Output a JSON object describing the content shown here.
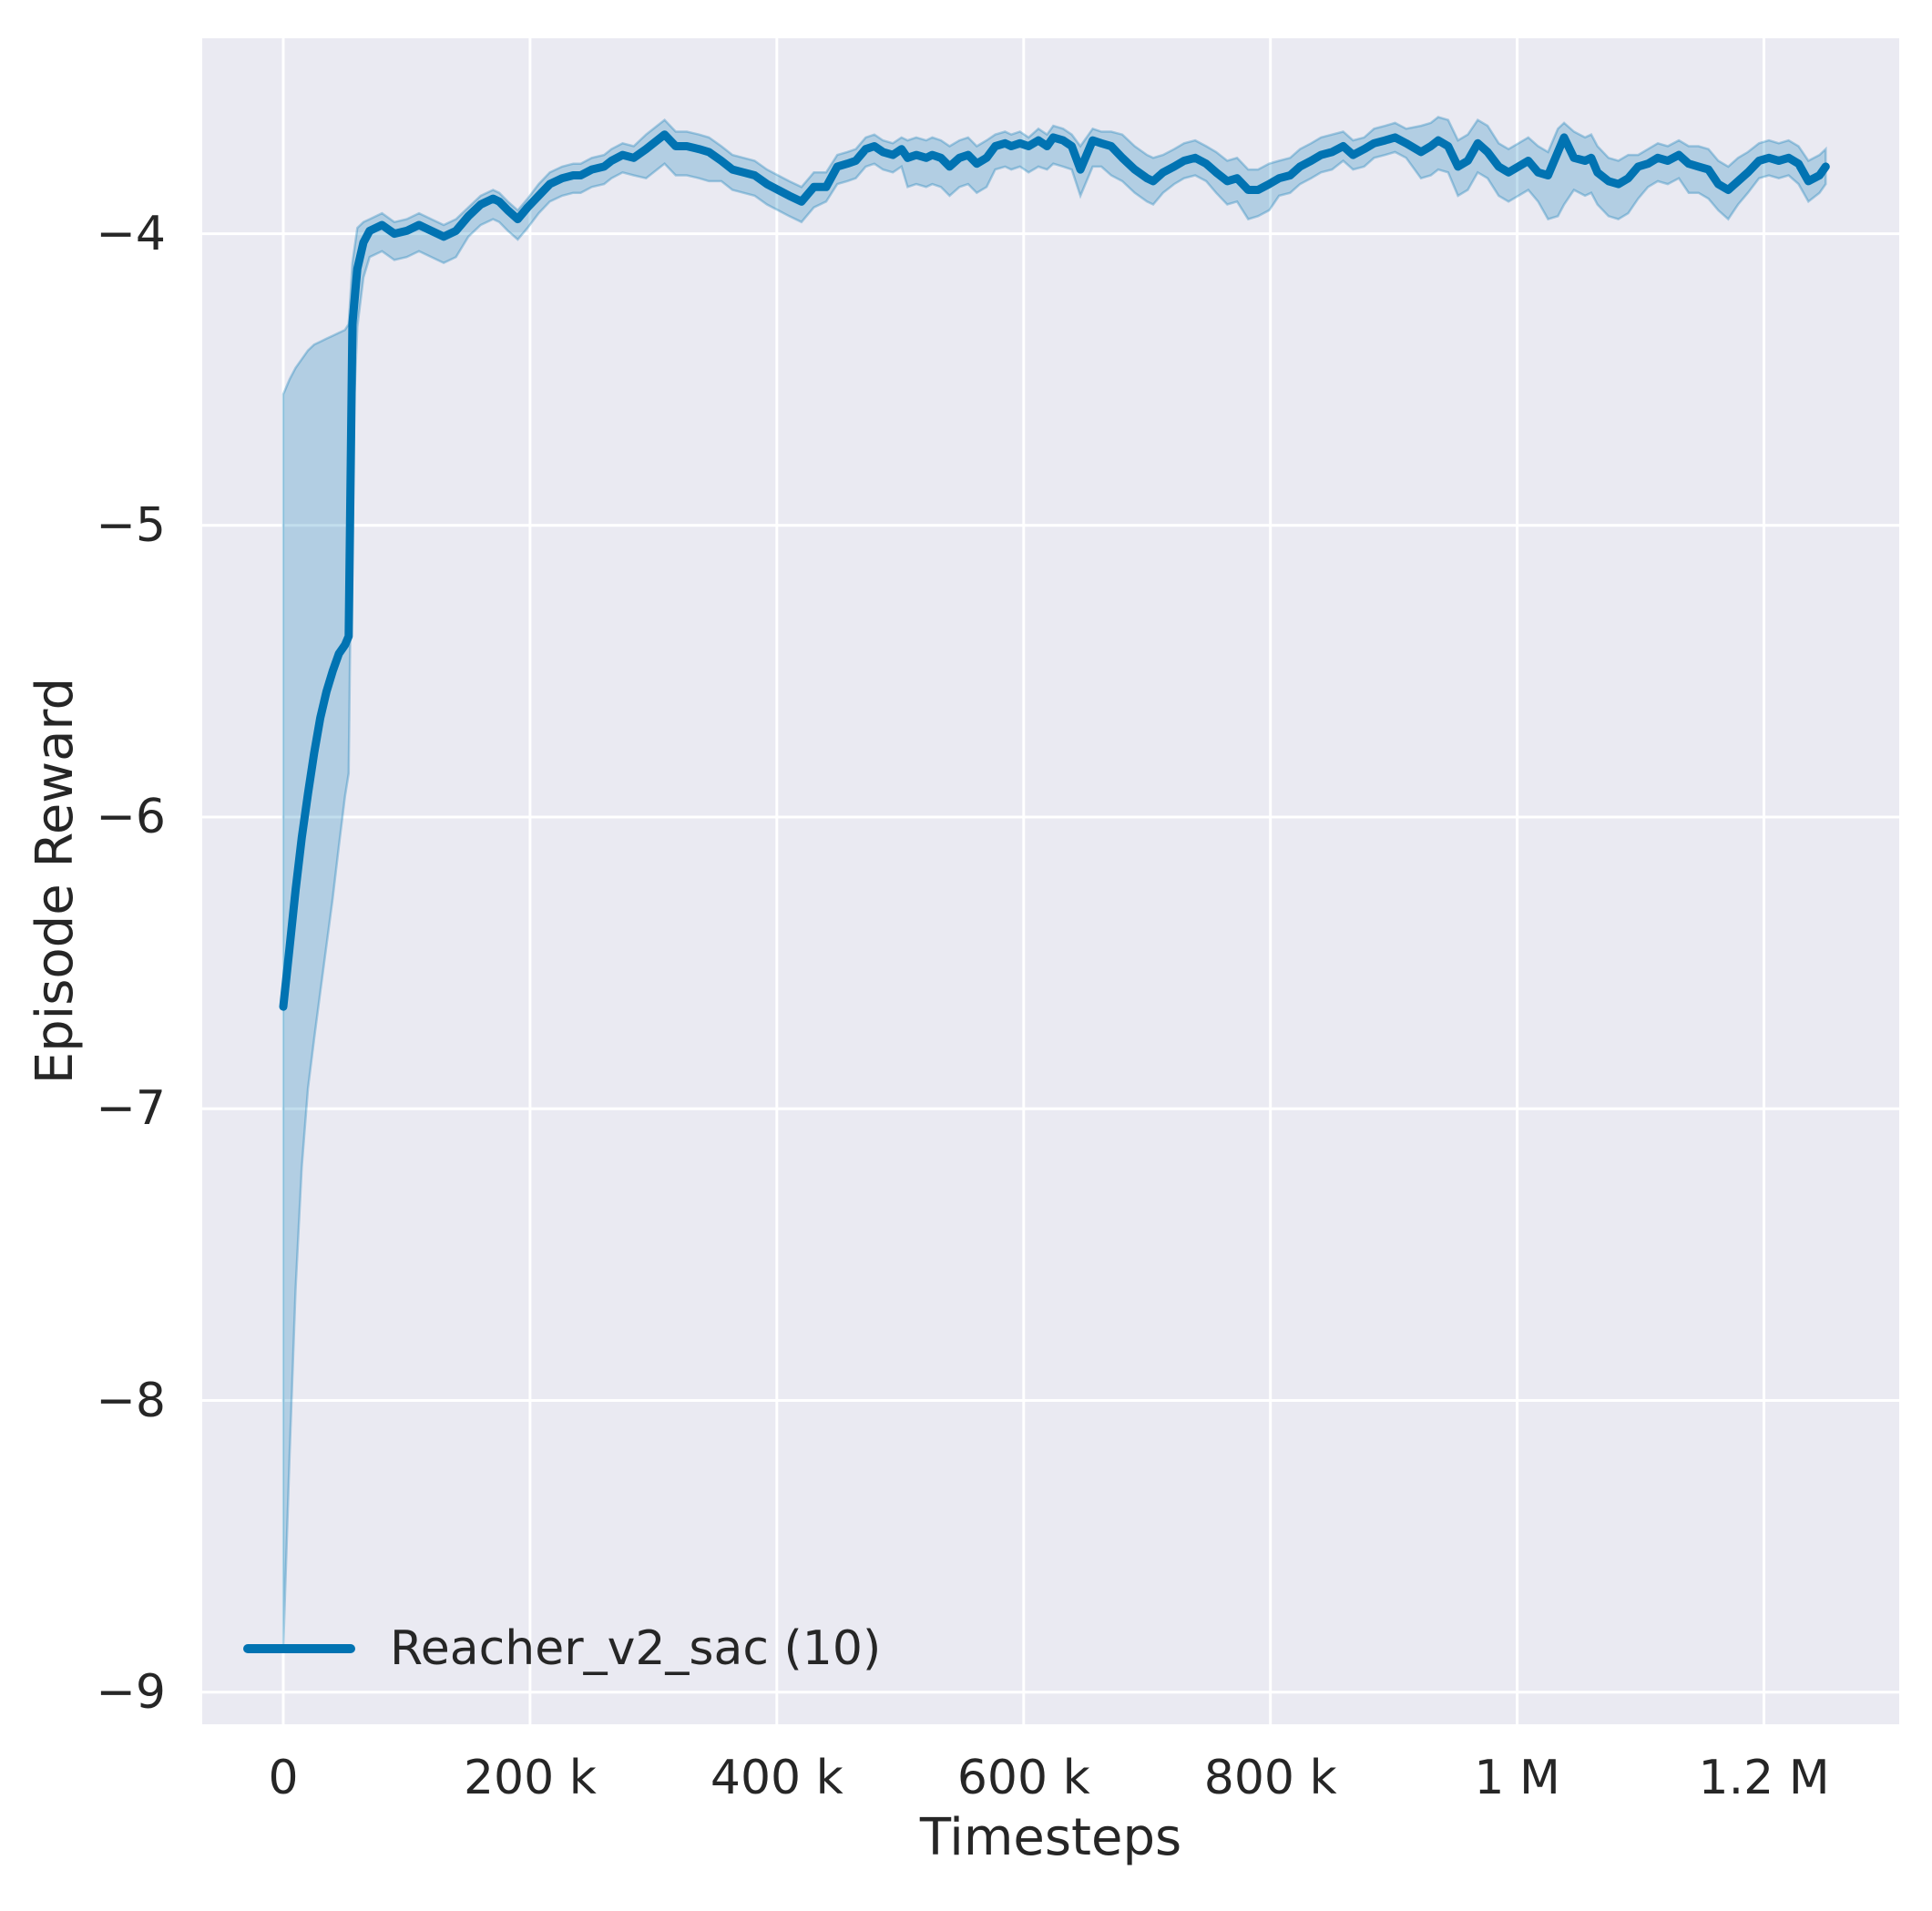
{
  "figure": {
    "background": "#ffffff",
    "plot_background": "#eaeaf2",
    "grid_color": "#ffffff",
    "text_color": "#262626"
  },
  "legend": {
    "entries": [
      {
        "label": "Reacher_v2_sac (10)",
        "color": "#0173b2"
      }
    ],
    "position": "lower left"
  },
  "chart_data": {
    "type": "line",
    "title": "",
    "xlabel": "Timesteps",
    "ylabel": "Episode Reward",
    "grid": true,
    "legend_position": "lower left",
    "x_unit": "timesteps (x_k values are thousands of timesteps)",
    "xlim_k": [
      -65.7,
      1309.6
    ],
    "ylim": [
      -9.11,
      -3.33
    ],
    "xticks": [
      {
        "value_k": 0,
        "label": "0"
      },
      {
        "value_k": 200,
        "label": "200 k"
      },
      {
        "value_k": 400,
        "label": "400 k"
      },
      {
        "value_k": 600,
        "label": "600 k"
      },
      {
        "value_k": 800,
        "label": "800 k"
      },
      {
        "value_k": 1000,
        "label": "1 M"
      },
      {
        "value_k": 1200,
        "label": "1.2 M"
      }
    ],
    "yticks": [
      {
        "value": -4,
        "label": "−4"
      },
      {
        "value": -5,
        "label": "−5"
      },
      {
        "value": -6,
        "label": "−6"
      },
      {
        "value": -7,
        "label": "−7"
      },
      {
        "value": -8,
        "label": "−8"
      },
      {
        "value": -9,
        "label": "−9"
      }
    ],
    "series": [
      {
        "name": "Reacher_v2_sac (10)",
        "color": "#0173b2",
        "band_fill_opacity": 0.24,
        "x_k": [
          0,
          5,
          10,
          15,
          20,
          25,
          30,
          35,
          40,
          45,
          50,
          53,
          56,
          60,
          65,
          70,
          80,
          90,
          100,
          110,
          120,
          130,
          140,
          150,
          160,
          170,
          175,
          182,
          190,
          198,
          207,
          216,
          226,
          235,
          241,
          250,
          260,
          266,
          275,
          284,
          294,
          303,
          309,
          318,
          327,
          337,
          345,
          355,
          364,
          373,
          382,
          392,
          401,
          410,
          420,
          430,
          440,
          449,
          457,
          464,
          472,
          479,
          486,
          494,
          501,
          506,
          513,
          521,
          526,
          533,
          540,
          548,
          555,
          562,
          570,
          577,
          585,
          590,
          597,
          604,
          612,
          619,
          624,
          632,
          639,
          646,
          656,
          663,
          671,
          680,
          690,
          700,
          705,
          713,
          722,
          730,
          739,
          748,
          756,
          765,
          773,
          782,
          790,
          799,
          807,
          816,
          824,
          833,
          841,
          850,
          859,
          867,
          876,
          884,
          893,
          901,
          910,
          922,
          930,
          936,
          944,
          952,
          960,
          968,
          976,
          985,
          993,
          1001,
          1009,
          1017,
          1025,
          1033,
          1038,
          1046,
          1055,
          1060,
          1065,
          1074,
          1082,
          1090,
          1098,
          1106,
          1114,
          1122,
          1131,
          1139,
          1147,
          1155,
          1163,
          1171,
          1179,
          1187,
          1196,
          1204,
          1212,
          1220,
          1228,
          1236,
          1245,
          1250
        ],
        "mean": [
          -6.65,
          -6.45,
          -6.25,
          -6.07,
          -5.92,
          -5.78,
          -5.66,
          -5.57,
          -5.5,
          -5.44,
          -5.41,
          -5.38,
          -4.31,
          -4.12,
          -4.03,
          -3.99,
          -3.97,
          -4.0,
          -3.99,
          -3.97,
          -3.99,
          -4.01,
          -3.99,
          -3.94,
          -3.9,
          -3.88,
          -3.89,
          -3.92,
          -3.95,
          -3.91,
          -3.87,
          -3.83,
          -3.81,
          -3.8,
          -3.8,
          -3.78,
          -3.77,
          -3.75,
          -3.73,
          -3.74,
          -3.71,
          -3.68,
          -3.66,
          -3.7,
          -3.7,
          -3.71,
          -3.72,
          -3.75,
          -3.78,
          -3.79,
          -3.8,
          -3.83,
          -3.85,
          -3.87,
          -3.89,
          -3.84,
          -3.84,
          -3.77,
          -3.76,
          -3.75,
          -3.71,
          -3.7,
          -3.72,
          -3.73,
          -3.71,
          -3.74,
          -3.73,
          -3.74,
          -3.73,
          -3.74,
          -3.77,
          -3.74,
          -3.73,
          -3.76,
          -3.74,
          -3.7,
          -3.69,
          -3.7,
          -3.69,
          -3.7,
          -3.68,
          -3.7,
          -3.67,
          -3.68,
          -3.7,
          -3.78,
          -3.68,
          -3.69,
          -3.7,
          -3.74,
          -3.78,
          -3.81,
          -3.82,
          -3.79,
          -3.77,
          -3.75,
          -3.74,
          -3.76,
          -3.79,
          -3.82,
          -3.81,
          -3.85,
          -3.85,
          -3.83,
          -3.81,
          -3.8,
          -3.77,
          -3.75,
          -3.73,
          -3.72,
          -3.7,
          -3.73,
          -3.71,
          -3.69,
          -3.68,
          -3.67,
          -3.69,
          -3.72,
          -3.7,
          -3.68,
          -3.7,
          -3.77,
          -3.75,
          -3.69,
          -3.72,
          -3.77,
          -3.79,
          -3.77,
          -3.75,
          -3.79,
          -3.8,
          -3.72,
          -3.67,
          -3.74,
          -3.75,
          -3.74,
          -3.79,
          -3.82,
          -3.83,
          -3.81,
          -3.77,
          -3.76,
          -3.74,
          -3.75,
          -3.73,
          -3.76,
          -3.77,
          -3.78,
          -3.83,
          -3.85,
          -3.82,
          -3.79,
          -3.75,
          -3.74,
          -3.75,
          -3.74,
          -3.76,
          -3.82,
          -3.8,
          -3.77
        ],
        "band_lo": [
          -8.85,
          -8.2,
          -7.62,
          -7.2,
          -6.93,
          -6.76,
          -6.6,
          -6.44,
          -6.28,
          -6.1,
          -5.93,
          -5.85,
          -4.72,
          -4.32,
          -4.15,
          -4.08,
          -4.06,
          -4.09,
          -4.08,
          -4.06,
          -4.08,
          -4.1,
          -4.08,
          -4.01,
          -3.97,
          -3.95,
          -3.96,
          -3.99,
          -4.02,
          -3.98,
          -3.93,
          -3.89,
          -3.87,
          -3.86,
          -3.86,
          -3.84,
          -3.83,
          -3.81,
          -3.79,
          -3.8,
          -3.81,
          -3.78,
          -3.76,
          -3.8,
          -3.8,
          -3.81,
          -3.82,
          -3.82,
          -3.85,
          -3.86,
          -3.87,
          -3.9,
          -3.92,
          -3.94,
          -3.96,
          -3.91,
          -3.89,
          -3.83,
          -3.82,
          -3.81,
          -3.77,
          -3.76,
          -3.78,
          -3.79,
          -3.77,
          -3.84,
          -3.83,
          -3.84,
          -3.83,
          -3.84,
          -3.87,
          -3.84,
          -3.83,
          -3.86,
          -3.84,
          -3.78,
          -3.77,
          -3.78,
          -3.77,
          -3.79,
          -3.77,
          -3.78,
          -3.76,
          -3.77,
          -3.78,
          -3.87,
          -3.77,
          -3.77,
          -3.8,
          -3.82,
          -3.86,
          -3.89,
          -3.9,
          -3.86,
          -3.83,
          -3.81,
          -3.8,
          -3.82,
          -3.86,
          -3.9,
          -3.89,
          -3.95,
          -3.94,
          -3.92,
          -3.87,
          -3.86,
          -3.83,
          -3.81,
          -3.79,
          -3.78,
          -3.75,
          -3.78,
          -3.77,
          -3.74,
          -3.73,
          -3.72,
          -3.74,
          -3.81,
          -3.8,
          -3.78,
          -3.79,
          -3.87,
          -3.85,
          -3.79,
          -3.81,
          -3.87,
          -3.89,
          -3.87,
          -3.85,
          -3.89,
          -3.95,
          -3.94,
          -3.9,
          -3.85,
          -3.87,
          -3.86,
          -3.9,
          -3.94,
          -3.95,
          -3.93,
          -3.88,
          -3.84,
          -3.82,
          -3.83,
          -3.81,
          -3.86,
          -3.86,
          -3.88,
          -3.92,
          -3.95,
          -3.9,
          -3.86,
          -3.81,
          -3.8,
          -3.81,
          -3.8,
          -3.83,
          -3.89,
          -3.86,
          -3.83
        ],
        "band_hi": [
          -4.55,
          -4.5,
          -4.46,
          -4.43,
          -4.4,
          -4.38,
          -4.37,
          -4.36,
          -4.35,
          -4.34,
          -4.33,
          -4.31,
          -4.1,
          -3.98,
          -3.96,
          -3.95,
          -3.93,
          -3.96,
          -3.95,
          -3.93,
          -3.95,
          -3.97,
          -3.95,
          -3.91,
          -3.87,
          -3.85,
          -3.86,
          -3.89,
          -3.92,
          -3.88,
          -3.83,
          -3.79,
          -3.77,
          -3.76,
          -3.76,
          -3.74,
          -3.73,
          -3.71,
          -3.69,
          -3.7,
          -3.66,
          -3.63,
          -3.61,
          -3.65,
          -3.65,
          -3.66,
          -3.67,
          -3.7,
          -3.73,
          -3.74,
          -3.75,
          -3.78,
          -3.8,
          -3.82,
          -3.84,
          -3.79,
          -3.79,
          -3.73,
          -3.72,
          -3.71,
          -3.67,
          -3.66,
          -3.68,
          -3.69,
          -3.67,
          -3.68,
          -3.67,
          -3.68,
          -3.67,
          -3.68,
          -3.7,
          -3.68,
          -3.67,
          -3.7,
          -3.68,
          -3.66,
          -3.65,
          -3.66,
          -3.65,
          -3.67,
          -3.64,
          -3.66,
          -3.63,
          -3.64,
          -3.66,
          -3.7,
          -3.64,
          -3.65,
          -3.65,
          -3.66,
          -3.7,
          -3.73,
          -3.74,
          -3.73,
          -3.71,
          -3.69,
          -3.68,
          -3.7,
          -3.72,
          -3.75,
          -3.74,
          -3.78,
          -3.78,
          -3.76,
          -3.75,
          -3.74,
          -3.71,
          -3.69,
          -3.67,
          -3.66,
          -3.65,
          -3.68,
          -3.67,
          -3.64,
          -3.63,
          -3.62,
          -3.64,
          -3.63,
          -3.62,
          -3.6,
          -3.61,
          -3.68,
          -3.66,
          -3.61,
          -3.63,
          -3.69,
          -3.71,
          -3.69,
          -3.67,
          -3.7,
          -3.72,
          -3.64,
          -3.62,
          -3.65,
          -3.67,
          -3.66,
          -3.7,
          -3.74,
          -3.75,
          -3.73,
          -3.73,
          -3.71,
          -3.69,
          -3.7,
          -3.68,
          -3.7,
          -3.7,
          -3.71,
          -3.75,
          -3.77,
          -3.74,
          -3.72,
          -3.69,
          -3.68,
          -3.69,
          -3.68,
          -3.7,
          -3.75,
          -3.73,
          -3.71
        ]
      }
    ]
  }
}
